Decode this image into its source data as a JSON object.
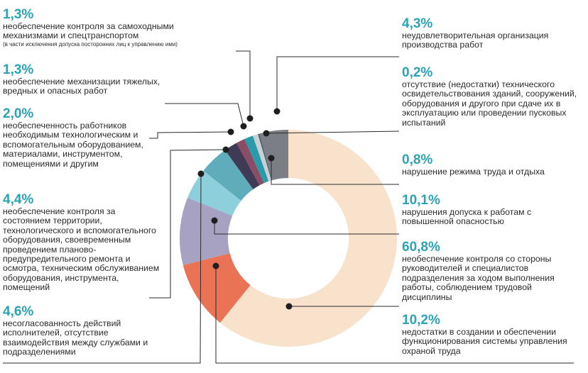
{
  "chart_data": {
    "type": "pie",
    "title": "",
    "slices": [
      {
        "id": "s-mgmt-control",
        "value": 60.8,
        "percent_label": "60,8%",
        "label": "необеспечение контроля со стороны руководителей и специалистов подразделения за ходом выполнения работы, соблюдением трудовой дисциплины",
        "color": "#f8e2cc"
      },
      {
        "id": "s-ot-system",
        "value": 10.2,
        "percent_label": "10,2%",
        "label": "недостатки в создании и обеспечении функционирования системы управления охраной труда",
        "color": "#ea7356"
      },
      {
        "id": "s-territory",
        "value": 10.1,
        "percent_label": "10,1%",
        "label": "нарушения допуска к работам с повышенной опасностью",
        "color": "#a7a2c2"
      },
      {
        "id": "s-permit",
        "value": 4.6,
        "percent_label": "4,6%",
        "label": "несогласованность действий исполнителей, отсутствие взаимодействия между службами и подразделениями",
        "color": "#8dcfdb"
      },
      {
        "id": "s-coordination",
        "value": 4.4,
        "percent_label": "4,4%",
        "label": "необеспечение контроля за состоянием территории, технологического и вспомогательного оборудования, своевременным проведением планово-предупредительного ремонта и осмотра, техническим обслуживанием оборудования, инструмента, помещений",
        "color": "#5fadbb"
      },
      {
        "id": "s-equipment",
        "value": 2.0,
        "percent_label": "2,0%",
        "label": "необеспеченность работников необходимым технологическим и вспомогательным оборудованием, материалами, инструментом, помещениями и другим",
        "color": "#3f3a55"
      },
      {
        "id": "s-mechanization",
        "value": 1.3,
        "percent_label": "1,3%",
        "label": "необеспечение механизации тяжелых, вредных и опасных работ",
        "color": "#8b4c66"
      },
      {
        "id": "s-vehicles",
        "value": 1.3,
        "percent_label": "1,3%",
        "label": "необеспечение контроля за самоходными механизмами и спецтранспортом",
        "color": "#2a9bab"
      },
      {
        "id": "s-regime",
        "value": 0.8,
        "percent_label": "0,8%",
        "label": "нарушение режима труда и отдыха",
        "color": "#c7d0d6"
      },
      {
        "id": "s-inspection",
        "value": 0.2,
        "percent_label": "0,2%",
        "label": "отсутствие (недостатки) технического освидетельствования зданий, сооружений, оборудования и другого при сдаче их в эксплуатацию или проведении пусковых испытаний",
        "color": "#4a5660"
      },
      {
        "id": "s-organization",
        "value": 4.3,
        "percent_label": "4,3%",
        "label": "неудовлетворительная организация производства работ",
        "color": "#7b7e84"
      }
    ],
    "vehicles_note": "(в части исключения допуска посторонних лиц к управлению ими)"
  },
  "labels": {
    "vehicles": {
      "pct": "1,3%",
      "desc": "необеспечение контроля за самоходными механизмами и спецтранспортом",
      "note": "(в части исключения допуска посторонних лиц к управлению ими)"
    },
    "mechanization": {
      "pct": "1,3%",
      "desc": "необеспечение механизации тяжелых, вредных и опасных работ"
    },
    "equipment": {
      "pct": "2,0%",
      "desc": "необеспеченность работников необходимым технологическим и вспомогательным оборудованием, материалами, инструментом, помещениями и другим"
    },
    "territory": {
      "pct": "4,4%",
      "desc": "необеспечение контроля за состоянием территории, технологического и вспомогательного оборудования, своевременным проведением планово-предупредительного ремонта и осмотра, техническим обслуживанием оборудования, инструмента, помещений"
    },
    "coordination": {
      "pct": "4,6%",
      "desc": "несогласованность действий исполнителей, отсутствие взаимодействия между службами и подразделениями"
    },
    "organization": {
      "pct": "4,3%",
      "desc": "неудовлетворительная организация производства работ"
    },
    "inspection": {
      "pct": "0,2%",
      "desc": "отсутствие (недостатки) технического освидетельствования зданий, сооружений, оборудования и другого при сдаче их в эксплуатацию или проведении пусковых испытаний"
    },
    "regime": {
      "pct": "0,8%",
      "desc": "нарушение режима труда и отдыха"
    },
    "permit": {
      "pct": "10,1%",
      "desc": "нарушения допуска к работам с повышенной опасностью"
    },
    "mgmt": {
      "pct": "60,8%",
      "desc": "необеспечение контроля со стороны руководителей и специалистов подразделения за ходом выполнения работы, соблюдением трудовой дисциплины"
    },
    "ot_system": {
      "pct": "10,2%",
      "desc": "недостатки в создании и обеспечении функционирования системы управления охраной труда"
    }
  }
}
